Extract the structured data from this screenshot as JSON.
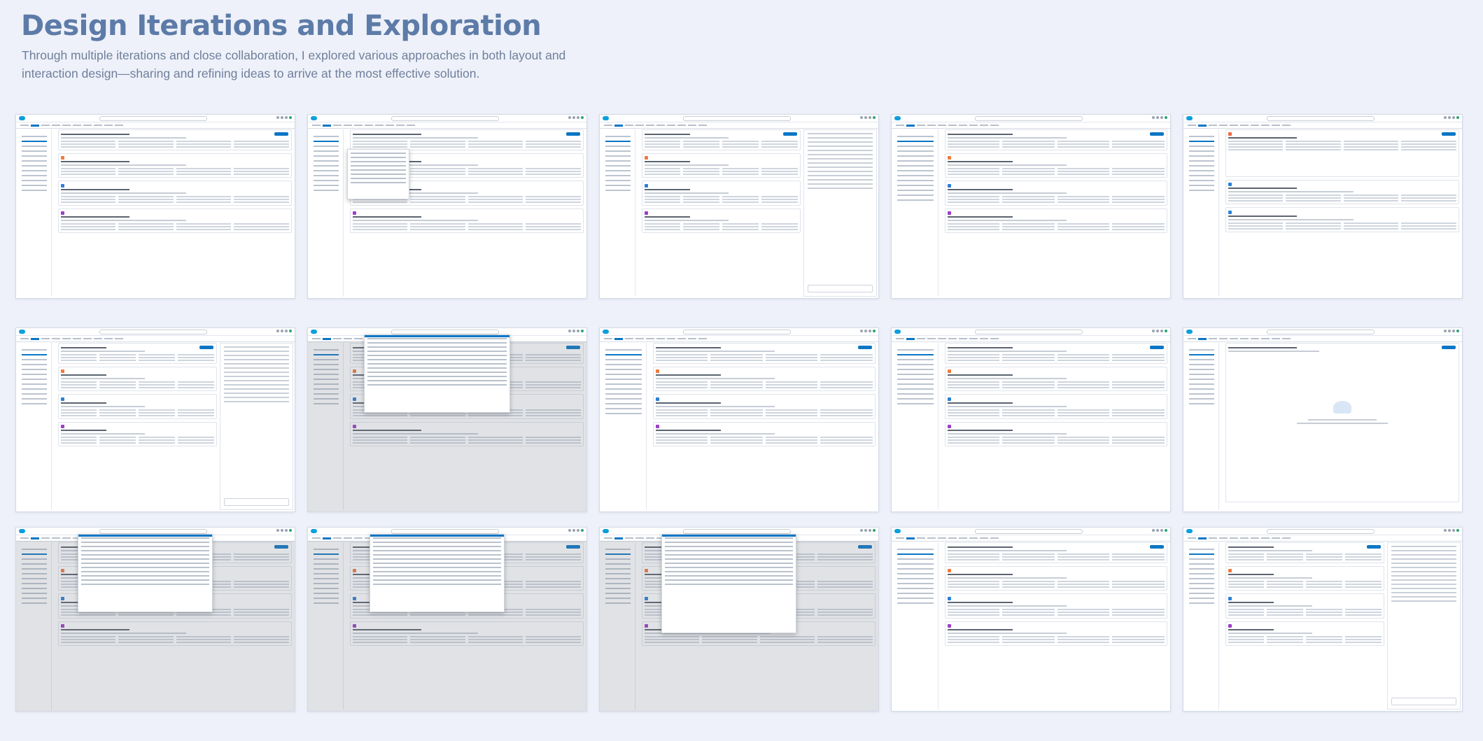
{
  "header": {
    "title": "Design Iterations and Exploration",
    "subtitle": "Through multiple iterations and close collaboration, I explored various approaches in both layout and interaction design—sharing and refining ideas to arrive at the most effective solution."
  },
  "colors": {
    "background": "#eef1f9",
    "title": "#5d7ba8",
    "subtitle": "#6f7f9c",
    "brand_blue": "#0b76c5",
    "cloud_logo": "#0b9fde"
  },
  "icons": [
    "salesforce-cloud-icon",
    "search-icon",
    "avatar-icon"
  ],
  "thumbnails": [
    {
      "variant": "results-list"
    },
    {
      "variant": "results-with-popover"
    },
    {
      "variant": "results-with-side-panel"
    },
    {
      "variant": "sidebar-filters-results"
    },
    {
      "variant": "opportunity-summary"
    },
    {
      "variant": "results-with-side-panel"
    },
    {
      "variant": "search-dropdown-modal"
    },
    {
      "variant": "sidebar-filters-results"
    },
    {
      "variant": "search-results-tables"
    },
    {
      "variant": "empty-state"
    },
    {
      "variant": "search-dropdown-suggestions"
    },
    {
      "variant": "search-dropdown-suggestions"
    },
    {
      "variant": "search-dropdown-answer"
    },
    {
      "variant": "search-results-tables"
    },
    {
      "variant": "knowledge-with-side-panel"
    }
  ]
}
